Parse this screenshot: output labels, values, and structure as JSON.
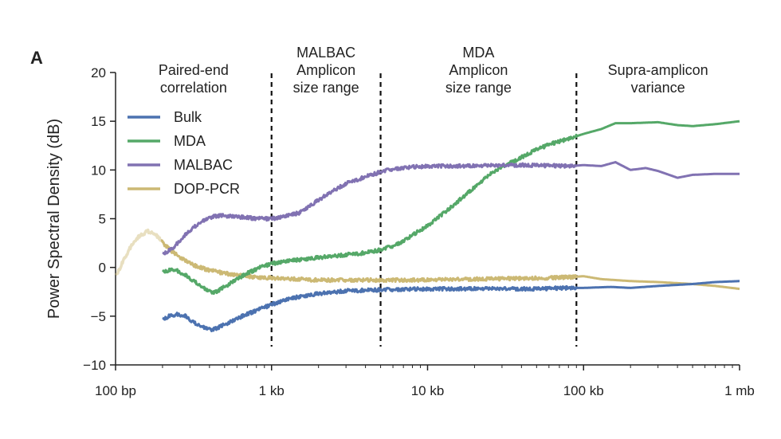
{
  "panel_label": "A",
  "chart_data": {
    "type": "line",
    "x_scale": "log",
    "xlim": [
      100,
      1000000
    ],
    "ylim": [
      -10,
      20
    ],
    "ylabel": "Power Spectral Density (dB)",
    "xlabel": "",
    "yticks": [
      -10,
      -5,
      0,
      5,
      10,
      15,
      20
    ],
    "ytick_labels": [
      "−10",
      "−5",
      "0",
      "5",
      "10",
      "15",
      "20"
    ],
    "xticks": [
      100,
      1000,
      10000,
      100000,
      1000000
    ],
    "xtick_labels": [
      "100 bp",
      "1 kb",
      "10 kb",
      "100 kb",
      "1 mb"
    ],
    "grid": false,
    "legend_position": "upper-left",
    "regions": [
      {
        "lines": [
          "Paired-end",
          "correlation"
        ],
        "from": 100,
        "to": 1000
      },
      {
        "lines": [
          "MALBAC",
          "Amplicon",
          "size range"
        ],
        "from": 1000,
        "to": 5000
      },
      {
        "lines": [
          "MDA",
          "Amplicon",
          "size range"
        ],
        "from": 5000,
        "to": 90000
      },
      {
        "lines": [
          "Supra-amplicon",
          "variance"
        ],
        "from": 90000,
        "to": 1000000
      }
    ],
    "dividers": [
      1000,
      5000,
      90000
    ],
    "series": [
      {
        "name": "Bulk",
        "color": "#4c72b0",
        "points": [
          [
            200,
            -5.3
          ],
          [
            220,
            -5.0
          ],
          [
            250,
            -4.8
          ],
          [
            280,
            -5.0
          ],
          [
            320,
            -5.7
          ],
          [
            370,
            -6.2
          ],
          [
            420,
            -6.4
          ],
          [
            480,
            -6.0
          ],
          [
            560,
            -5.5
          ],
          [
            650,
            -5.0
          ],
          [
            750,
            -4.6
          ],
          [
            900,
            -4.1
          ],
          [
            1000,
            -3.8
          ],
          [
            1200,
            -3.4
          ],
          [
            1500,
            -3.0
          ],
          [
            2000,
            -2.7
          ],
          [
            3000,
            -2.4
          ],
          [
            5000,
            -2.3
          ],
          [
            10000,
            -2.2
          ],
          [
            20000,
            -2.2
          ],
          [
            50000,
            -2.2
          ],
          [
            80000,
            -2.1
          ],
          [
            100000,
            -2.1
          ],
          [
            150000,
            -2.0
          ],
          [
            200000,
            -2.1
          ],
          [
            300000,
            -1.9
          ],
          [
            500000,
            -1.7
          ],
          [
            700000,
            -1.5
          ],
          [
            1000000,
            -1.4
          ]
        ]
      },
      {
        "name": "MDA",
        "color": "#55a868",
        "points": [
          [
            200,
            -0.4
          ],
          [
            240,
            -0.2
          ],
          [
            280,
            -0.8
          ],
          [
            330,
            -1.6
          ],
          [
            380,
            -2.3
          ],
          [
            430,
            -2.6
          ],
          [
            500,
            -2.0
          ],
          [
            600,
            -1.2
          ],
          [
            700,
            -0.6
          ],
          [
            850,
            0.0
          ],
          [
            1000,
            0.4
          ],
          [
            1500,
            0.8
          ],
          [
            2000,
            1.0
          ],
          [
            3000,
            1.3
          ],
          [
            4000,
            1.5
          ],
          [
            5000,
            1.8
          ],
          [
            6000,
            2.2
          ],
          [
            7000,
            2.7
          ],
          [
            8000,
            3.3
          ],
          [
            10000,
            4.3
          ],
          [
            13000,
            5.7
          ],
          [
            16000,
            6.9
          ],
          [
            20000,
            8.2
          ],
          [
            25000,
            9.5
          ],
          [
            30000,
            10.3
          ],
          [
            40000,
            11.3
          ],
          [
            50000,
            12.1
          ],
          [
            60000,
            12.6
          ],
          [
            80000,
            13.2
          ],
          [
            100000,
            13.7
          ],
          [
            130000,
            14.2
          ],
          [
            160000,
            14.8
          ],
          [
            200000,
            14.8
          ],
          [
            300000,
            14.9
          ],
          [
            400000,
            14.6
          ],
          [
            500000,
            14.5
          ],
          [
            700000,
            14.7
          ],
          [
            1000000,
            15.0
          ]
        ]
      },
      {
        "name": "MALBAC",
        "color": "#8172b2",
        "points": [
          [
            200,
            1.4
          ],
          [
            230,
            1.9
          ],
          [
            260,
            2.8
          ],
          [
            300,
            3.8
          ],
          [
            350,
            4.6
          ],
          [
            400,
            5.1
          ],
          [
            450,
            5.3
          ],
          [
            500,
            5.3
          ],
          [
            600,
            5.2
          ],
          [
            700,
            5.1
          ],
          [
            800,
            5.0
          ],
          [
            1000,
            5.0
          ],
          [
            1200,
            5.2
          ],
          [
            1500,
            5.6
          ],
          [
            2000,
            6.9
          ],
          [
            2500,
            7.9
          ],
          [
            3000,
            8.6
          ],
          [
            4000,
            9.3
          ],
          [
            5000,
            9.8
          ],
          [
            6000,
            10.1
          ],
          [
            8000,
            10.3
          ],
          [
            10000,
            10.4
          ],
          [
            20000,
            10.4
          ],
          [
            40000,
            10.5
          ],
          [
            80000,
            10.4
          ],
          [
            100000,
            10.5
          ],
          [
            130000,
            10.4
          ],
          [
            160000,
            10.8
          ],
          [
            200000,
            10.0
          ],
          [
            250000,
            10.2
          ],
          [
            300000,
            9.9
          ],
          [
            400000,
            9.2
          ],
          [
            500000,
            9.5
          ],
          [
            700000,
            9.6
          ],
          [
            1000000,
            9.6
          ]
        ]
      },
      {
        "name": "DOP-PCR",
        "color": "#ccb974",
        "points": [
          [
            100,
            -0.9
          ],
          [
            110,
            0.4
          ],
          [
            120,
            1.6
          ],
          [
            130,
            2.6
          ],
          [
            145,
            3.3
          ],
          [
            160,
            3.7
          ],
          [
            175,
            3.5
          ],
          [
            190,
            3.0
          ],
          [
            210,
            2.2
          ],
          [
            240,
            1.4
          ],
          [
            280,
            0.7
          ],
          [
            330,
            0.1
          ],
          [
            400,
            -0.3
          ],
          [
            500,
            -0.6
          ],
          [
            600,
            -0.8
          ],
          [
            800,
            -1.0
          ],
          [
            1000,
            -1.1
          ],
          [
            1500,
            -1.2
          ],
          [
            2000,
            -1.3
          ],
          [
            3000,
            -1.3
          ],
          [
            5000,
            -1.3
          ],
          [
            10000,
            -1.3
          ],
          [
            20000,
            -1.2
          ],
          [
            50000,
            -1.1
          ],
          [
            80000,
            -1.0
          ],
          [
            100000,
            -0.9
          ],
          [
            130000,
            -1.2
          ],
          [
            200000,
            -1.4
          ],
          [
            300000,
            -1.5
          ],
          [
            500000,
            -1.7
          ],
          [
            700000,
            -1.9
          ],
          [
            1000000,
            -2.2
          ]
        ]
      }
    ]
  }
}
